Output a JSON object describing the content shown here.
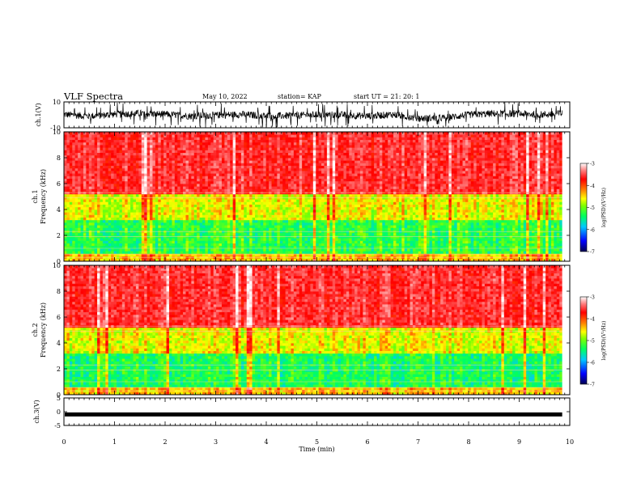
{
  "header": {
    "title": "VLF Spectra",
    "date": "May 10, 2022",
    "station": "station= KAP",
    "start": "start  UT =   21: 20: 1"
  },
  "colors": {
    "spectrogram_scale": [
      "#000080",
      "#0000ff",
      "#00c8ff",
      "#00ff80",
      "#80ff00",
      "#ffff00",
      "#ff8000",
      "#ff0000",
      "#ff4040",
      "#ffffff"
    ]
  },
  "chart_data": [
    {
      "type": "line",
      "name": "ch1-waveform",
      "ylabel": "ch.1(V)",
      "ylim": [
        -10,
        10
      ],
      "y_tick_labels": [
        "10",
        "-10"
      ],
      "xlim": [
        0,
        10
      ],
      "trace_level": [
        0.3,
        -1.1,
        0.4,
        1.2,
        0.5,
        -0.9,
        -0.3,
        0.4,
        -0.9,
        -0.6,
        0.1,
        0.0,
        -1.0,
        0.3,
        -2.8,
        -2.4,
        0.0,
        1.0,
        0.8,
        0.2,
        1.5
      ]
    },
    {
      "type": "heatmap",
      "name": "ch1-spectrogram",
      "ylabel": "ch.1 Frequency (kHz)",
      "ylim": [
        0,
        10
      ],
      "y_tick_labels": [
        "0",
        "2",
        "4",
        "6",
        "8",
        "10"
      ],
      "xlim": [
        0,
        10
      ],
      "colorbar": {
        "label": "log(PSD)(V²/Hz)",
        "range": [
          -7,
          -3
        ],
        "tick_labels": [
          "-3",
          "-4",
          "-5",
          "-6",
          "-7"
        ]
      }
    },
    {
      "type": "heatmap",
      "name": "ch2-spectrogram",
      "ylabel": "ch.2 Frequency (kHz)",
      "ylim": [
        0,
        10
      ],
      "y_tick_labels": [
        "0",
        "2",
        "4",
        "6",
        "8",
        "10"
      ],
      "xlim": [
        0,
        10
      ],
      "colorbar": {
        "label": "log(PSD)(V²/Hz)",
        "range": [
          -7,
          -3
        ],
        "tick_labels": [
          "-3",
          "-4",
          "-5",
          "-6",
          "-7"
        ]
      }
    },
    {
      "type": "line",
      "name": "ch3-waveform",
      "ylabel": "ch.3(V)",
      "ylim": [
        -5,
        5
      ],
      "y_tick_labels": [
        "5",
        "0",
        "-5"
      ],
      "xlabel": "Time (min)",
      "xlim": [
        0,
        10
      ],
      "x_tick_labels": [
        "0",
        "1",
        "2",
        "3",
        "4",
        "5",
        "6",
        "7",
        "8",
        "9",
        "10"
      ],
      "trace_level": -1
    }
  ]
}
